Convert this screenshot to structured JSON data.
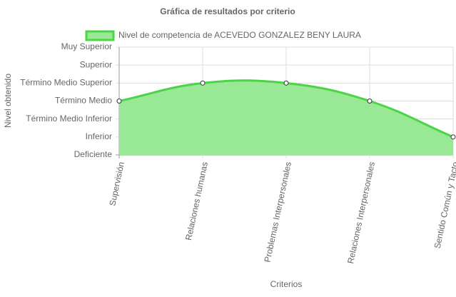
{
  "chart_data": {
    "type": "line",
    "title": "Gráfica de resultados por criterio",
    "x_label": "Criterios",
    "y_label": "Nivel obtenido",
    "categories": [
      "Supervisión",
      "Relaciones humanas",
      "Problemas Interpersonales",
      "Relaciones Interpersonales",
      "Sentido Común y Tacto"
    ],
    "series": [
      {
        "name": "Nivel de competencia de ACEVEDO GONZALEZ BENY LAURA",
        "color": "#4cd447",
        "fill": "#98e895",
        "values": [
          3,
          4,
          4,
          3,
          1
        ]
      }
    ],
    "ylim": [
      0,
      6
    ],
    "yticks": [
      {
        "value": 0,
        "label": "Deficiente"
      },
      {
        "value": 1,
        "label": "Inferior"
      },
      {
        "value": 2,
        "label": "Término Medio Inferior"
      },
      {
        "value": 3,
        "label": "Término Medio"
      },
      {
        "value": 4,
        "label": "Término Medio Superior"
      },
      {
        "value": 5,
        "label": "Superior"
      },
      {
        "value": 6,
        "label": "Muy Superior"
      }
    ],
    "grid": true
  }
}
